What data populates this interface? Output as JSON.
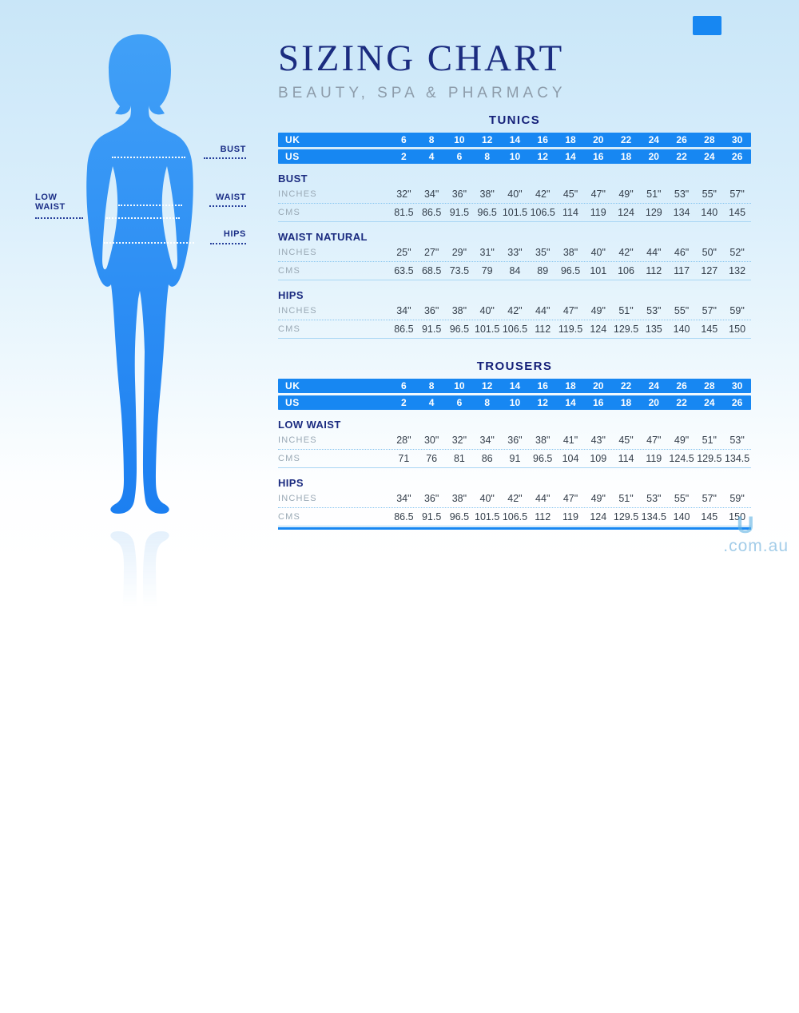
{
  "header": {
    "title": "SIZING CHART",
    "subtitle": "BEAUTY, SPA & PHARMACY"
  },
  "figure_labels": {
    "bust": "BUST",
    "waist": "WAIST",
    "hips": "HIPS",
    "low_waist": "LOW WAIST"
  },
  "watermark": {
    "logo": "U",
    "domain": ".com.au"
  },
  "row_labels": {
    "uk": "UK",
    "us": "US",
    "inches": "INCHES",
    "cms": "CMS"
  },
  "colors": {
    "accent_blue": "#1787f2",
    "navy": "#1b2b80",
    "label_gray": "#9aa9b5",
    "figure_blue": "#2e8df4"
  },
  "chart_data": [
    {
      "type": "table",
      "title": "TUNICS",
      "size_rows": {
        "UK": [
          6,
          8,
          10,
          12,
          14,
          16,
          18,
          20,
          22,
          24,
          26,
          28,
          30
        ],
        "US": [
          2,
          4,
          6,
          8,
          10,
          12,
          14,
          16,
          18,
          20,
          22,
          24,
          26
        ]
      },
      "sections": [
        {
          "title": "BUST",
          "inches": [
            "32\"",
            "34\"",
            "36\"",
            "38\"",
            "40\"",
            "42\"",
            "45\"",
            "47\"",
            "49\"",
            "51\"",
            "53\"",
            "55\"",
            "57\""
          ],
          "cms": [
            81.5,
            86.5,
            91.5,
            96.5,
            101.5,
            106.5,
            114,
            119,
            124,
            129,
            134,
            140,
            145
          ]
        },
        {
          "title": "WAIST NATURAL",
          "inches": [
            "25\"",
            "27\"",
            "29\"",
            "31\"",
            "33\"",
            "35\"",
            "38\"",
            "40\"",
            "42\"",
            "44\"",
            "46\"",
            "50\"",
            "52\""
          ],
          "cms": [
            63.5,
            68.5,
            73.5,
            79,
            84,
            89,
            96.5,
            101,
            106,
            112,
            117,
            127,
            132
          ]
        },
        {
          "title": "HIPS",
          "inches": [
            "34\"",
            "36\"",
            "38\"",
            "40\"",
            "42\"",
            "44\"",
            "47\"",
            "49\"",
            "51\"",
            "53\"",
            "55\"",
            "57\"",
            "59\""
          ],
          "cms": [
            86.5,
            91.5,
            96.5,
            101.5,
            106.5,
            112,
            119.5,
            124,
            129.5,
            135,
            140,
            145,
            150
          ]
        }
      ]
    },
    {
      "type": "table",
      "title": "TROUSERS",
      "size_rows": {
        "UK": [
          6,
          8,
          10,
          12,
          14,
          16,
          18,
          20,
          22,
          24,
          26,
          28,
          30
        ],
        "US": [
          2,
          4,
          6,
          8,
          10,
          12,
          14,
          16,
          18,
          20,
          22,
          24,
          26
        ]
      },
      "sections": [
        {
          "title": "LOW WAIST",
          "inches": [
            "28\"",
            "30\"",
            "32\"",
            "34\"",
            "36\"",
            "38\"",
            "41\"",
            "43\"",
            "45\"",
            "47\"",
            "49\"",
            "51\"",
            "53\""
          ],
          "cms": [
            71,
            76,
            81,
            86,
            91,
            96.5,
            104,
            109,
            114,
            119,
            124.5,
            129.5,
            134.5
          ]
        },
        {
          "title": "HIPS",
          "inches": [
            "34\"",
            "36\"",
            "38\"",
            "40\"",
            "42\"",
            "44\"",
            "47\"",
            "49\"",
            "51\"",
            "53\"",
            "55\"",
            "57\"",
            "59\""
          ],
          "cms": [
            86.5,
            91.5,
            96.5,
            101.5,
            106.5,
            112,
            119,
            124,
            129.5,
            134.5,
            140,
            145,
            150
          ]
        }
      ]
    }
  ]
}
